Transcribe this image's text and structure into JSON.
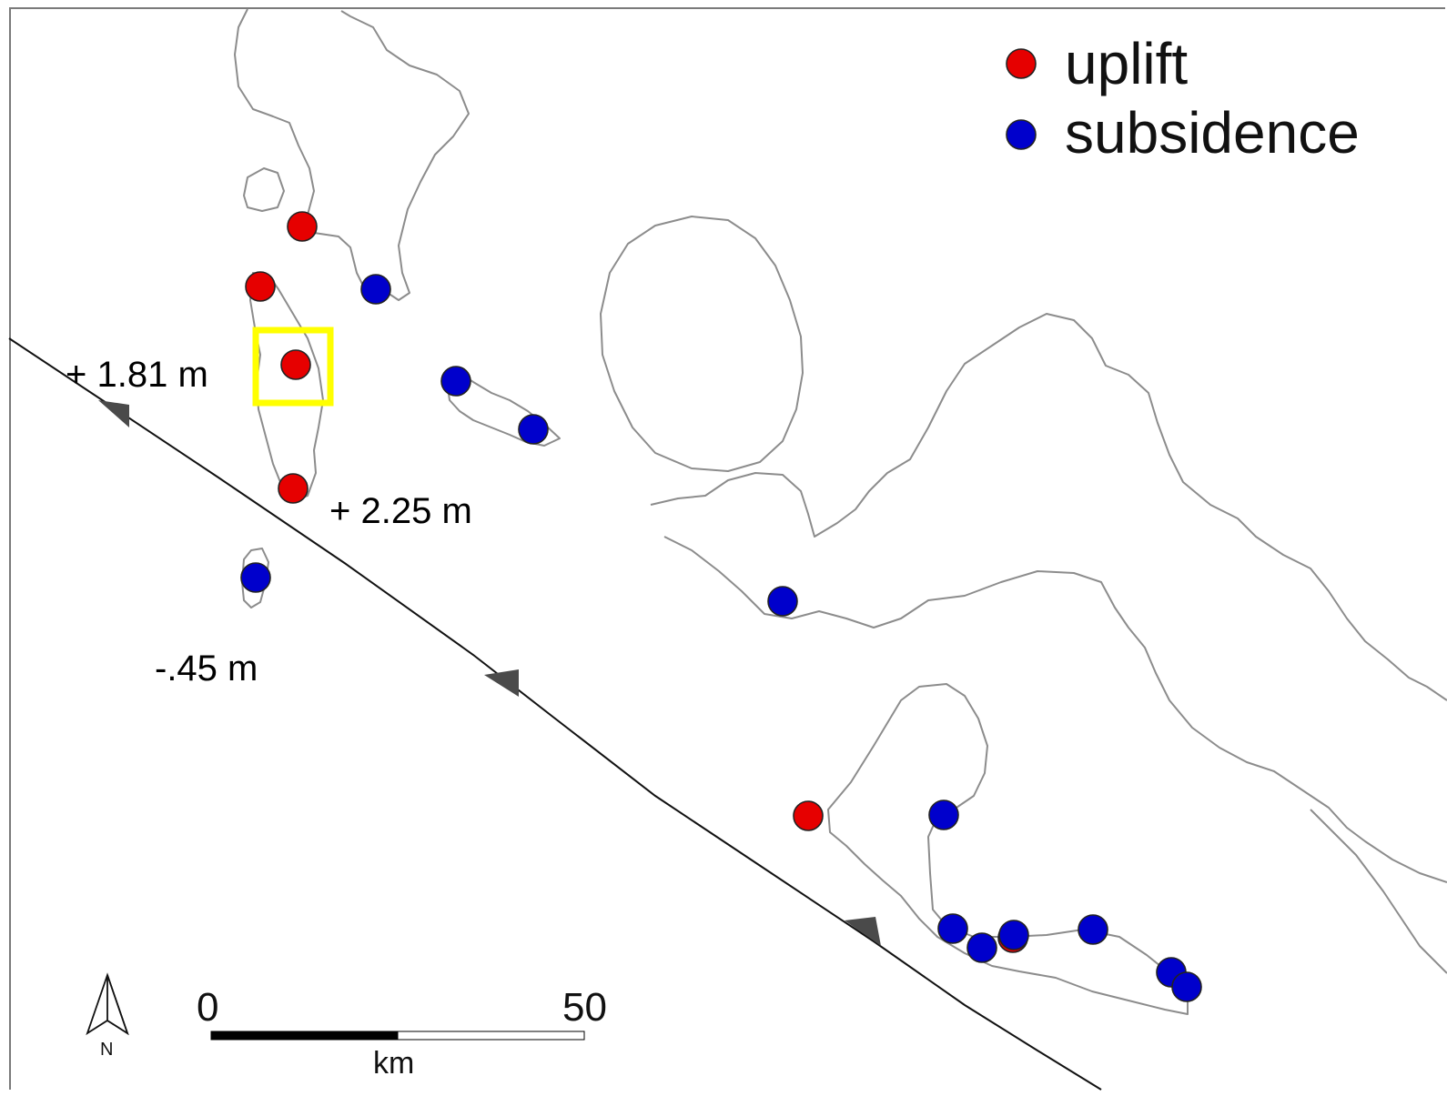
{
  "legend": {
    "items": [
      {
        "label": "uplift",
        "color": "#e60000"
      },
      {
        "label": "subsidence",
        "color": "#0000cc"
      }
    ]
  },
  "labels": {
    "label_a": "+ 1.81 m",
    "label_b": "+ 2.25 m",
    "label_c": "-.45 m"
  },
  "scale_bar": {
    "start": "0",
    "end": "50",
    "unit": "km"
  },
  "north_arrow": {
    "letter": "N"
  },
  "points": [
    {
      "type": "uplift"
    },
    {
      "type": "uplift"
    },
    {
      "type": "uplift"
    },
    {
      "type": "uplift"
    },
    {
      "type": "uplift"
    },
    {
      "type": "uplift"
    },
    {
      "type": "subsidence"
    },
    {
      "type": "subsidence"
    },
    {
      "type": "subsidence"
    },
    {
      "type": "subsidence"
    },
    {
      "type": "subsidence"
    },
    {
      "type": "subsidence"
    },
    {
      "type": "subsidence"
    },
    {
      "type": "subsidence"
    },
    {
      "type": "subsidence"
    },
    {
      "type": "subsidence"
    },
    {
      "type": "subsidence"
    },
    {
      "type": "subsidence"
    },
    {
      "type": "subsidence"
    }
  ]
}
